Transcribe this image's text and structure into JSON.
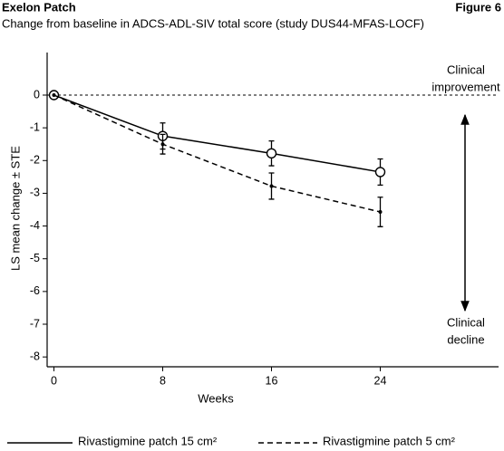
{
  "chart_data": {
    "type": "line",
    "title": "Exelon Patch",
    "figure_label": "Figure 6",
    "subtitle": "Change from baseline in ADCS-ADL-SIV total score (study DUS44-MFAS-LOCF)",
    "x_label": "Weeks",
    "y_label": "LS mean change ± STE",
    "x": [
      0,
      8,
      16,
      24
    ],
    "series": [
      {
        "name": "Rivastigmine patch 15 cm²",
        "color": "#000000",
        "dash": false,
        "values": [
          0,
          -1.25,
          -1.78,
          -2.35
        ],
        "errors": [
          0,
          0.4,
          0.38,
          0.4
        ]
      },
      {
        "name": "Rivastigmine patch 5 cm²",
        "color": "#000000",
        "dash": true,
        "values": [
          0,
          -1.5,
          -2.78,
          -3.57
        ],
        "errors": [
          0,
          0.3,
          0.4,
          0.45
        ]
      }
    ],
    "reference_line": 0,
    "annotations": [
      [
        "Clinical",
        "improvement"
      ],
      [
        "Clinical",
        "decline"
      ]
    ],
    "xlim": [
      -0.5,
      32.7
    ],
    "xticks": [
      0,
      8,
      16,
      24
    ],
    "ylim": [
      -8.3,
      1.3
    ],
    "yticks": [
      0,
      -1,
      -2,
      -3,
      -4,
      -5,
      -6,
      -7,
      -8
    ],
    "legend": "bottom"
  }
}
